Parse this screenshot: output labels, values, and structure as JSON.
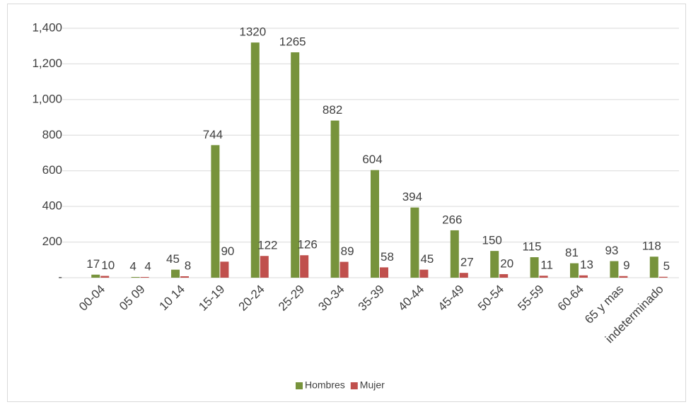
{
  "chart_data": {
    "type": "bar",
    "categories": [
      "00-04",
      "05 09",
      "10 14",
      "15-19",
      "20-24",
      "25-29",
      "30-34",
      "35-39",
      "40-44",
      "45-49",
      "50-54",
      "55-59",
      "60-64",
      "65 y mas",
      "indeterminado"
    ],
    "series": [
      {
        "name": "Hombres",
        "color": "#77933c",
        "values": [
          17,
          4,
          45,
          744,
          1320,
          1265,
          882,
          604,
          394,
          266,
          150,
          115,
          81,
          93,
          118
        ]
      },
      {
        "name": "Mujer",
        "color": "#c0504d",
        "values": [
          10,
          4,
          8,
          90,
          122,
          126,
          89,
          58,
          45,
          27,
          20,
          11,
          13,
          9,
          5
        ]
      }
    ],
    "ylim": [
      0,
      1400
    ],
    "yticks": [
      {
        "value": 0,
        "label": "-"
      },
      200,
      400,
      600,
      800,
      {
        "value": 1000,
        "label": "1,000"
      },
      {
        "value": 1200,
        "label": "1,200"
      },
      {
        "value": 1400,
        "label": "1,400"
      }
    ],
    "grid": true,
    "legend": "bottom"
  }
}
